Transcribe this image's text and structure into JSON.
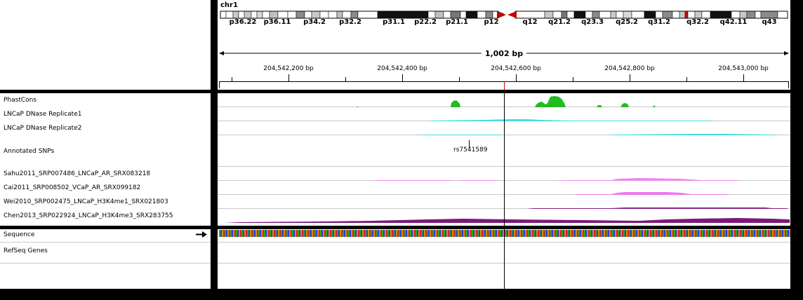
{
  "header": {
    "chromosome": "chr1",
    "span_label": "1,002 bp",
    "bands": [
      "p36.22",
      "p36.11",
      "p34.2",
      "p32.2",
      "p31.1",
      "p22.2",
      "p21.1",
      "p12",
      "q12",
      "q21.2",
      "q23.3",
      "q25.2",
      "q31.2",
      "q32.2",
      "q42.11",
      "q43"
    ],
    "ruler_ticks": [
      "204,542,200 bp",
      "204,542,400 bp",
      "204,542,600 bp",
      "204,542,800 bp",
      "204,543,000 bp"
    ]
  },
  "tracks": {
    "phastcons": "PhastCons",
    "dnase1": "LNCaP DNase Replicate1",
    "dnase2": "LNCaP DNase Replicate2",
    "snps": "Annotated SNPs",
    "snp_id": "rs7541589",
    "sahu": "Sahu2011_SRP007486_LNCaP_AR_SRX083218",
    "cai": "Cai2011_SRP008502_VCaP_AR_SRX099182",
    "wei": "Wei2010_SRP002475_LNCaP_H3K4me1_SRX021803",
    "chen": "Chen2013_SRP022924_LNCaP_H3K4me3_SRX283755"
  },
  "lower": {
    "sequence": "Sequence",
    "refseq": "RefSeq Genes"
  },
  "colors": {
    "phastcons": "#22bb22",
    "dnase": "#44dddd",
    "sahu": "#ee88ee",
    "cai": "#ee77ee",
    "wei": "#882288",
    "chen": "#7a1a7a",
    "center_line": "#000000",
    "marker": "#e00000"
  }
}
